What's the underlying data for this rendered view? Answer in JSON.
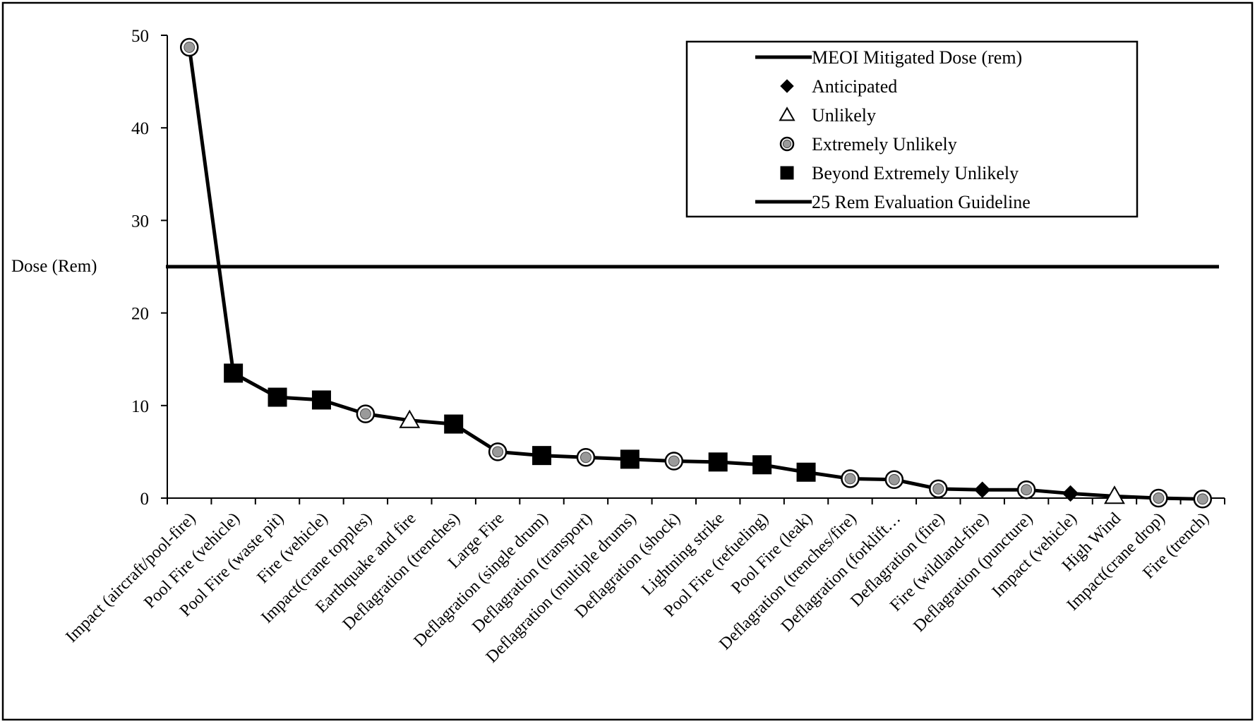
{
  "chart_data": {
    "type": "line",
    "ylabel": "Dose (Rem)",
    "xlabel": "",
    "ylim": [
      0,
      50
    ],
    "yticks": [
      0,
      10,
      20,
      30,
      40,
      50
    ],
    "grid": false,
    "legend_position": "top-right",
    "categories": [
      "Impact (aircraft/pool-fire)",
      "Pool Fire (vehicle)",
      "Pool Fire (waste pit)",
      "Fire (vehicle)",
      "Impact(crane topples)",
      "Earthquake and fire",
      "Deflagration (trenches)",
      "Large Fire",
      "Deflagration (single drum)",
      "Deflagration (transport)",
      "Deflagration (multiple drums)",
      "Deflagration (shock)",
      "Lightning strike",
      "Pool Fire (refueling)",
      "Pool Fire (leak)",
      "Deflagration (trenches/fire)",
      "Deflagration (forklift…",
      "Deflagration (fire)",
      "Fire (wildland-fire)",
      "Deflagration (puncture)",
      "Impact (vehicle)",
      "High Wind",
      "Impact(crane drop)",
      "Fire (trench)"
    ],
    "series": [
      {
        "name": "MEOI Mitigated Dose (rem)",
        "values": [
          48.7,
          13.5,
          10.9,
          10.6,
          9.1,
          8.4,
          8.0,
          5.0,
          4.6,
          4.4,
          4.2,
          4.0,
          3.9,
          3.6,
          2.8,
          2.1,
          2.0,
          1.0,
          0.9,
          0.9,
          0.5,
          0.2,
          0.0,
          -0.1
        ]
      },
      {
        "name": "25 Rem Evaluation Guideline",
        "value": 25
      }
    ],
    "likelihood": [
      "extremely_unlikely",
      "beyond",
      "beyond",
      "beyond",
      "extremely_unlikely",
      "unlikely",
      "beyond",
      "extremely_unlikely",
      "beyond",
      "extremely_unlikely",
      "beyond",
      "extremely_unlikely",
      "beyond",
      "beyond",
      "beyond",
      "extremely_unlikely",
      "extremely_unlikely",
      "extremely_unlikely",
      "anticipated",
      "extremely_unlikely",
      "anticipated",
      "unlikely",
      "extremely_unlikely",
      "extremely_unlikely"
    ],
    "legend": [
      {
        "label": "MEOI Mitigated Dose (rem)",
        "marker": "line"
      },
      {
        "label": "Anticipated",
        "marker": "diamond-filled"
      },
      {
        "label": "Unlikely",
        "marker": "triangle-open"
      },
      {
        "label": "Extremely Unlikely",
        "marker": "circle-dotted"
      },
      {
        "label": "Beyond Extremely Unlikely",
        "marker": "square-filled"
      },
      {
        "label": "25 Rem Evaluation Guideline",
        "marker": "line"
      }
    ],
    "colors": {
      "line": "#000000",
      "marker_fill": "#000000",
      "dotted_fill": "#9a9a9a",
      "background": "#ffffff"
    }
  }
}
